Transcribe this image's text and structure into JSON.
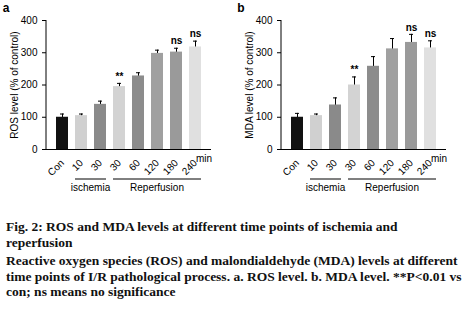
{
  "chart_data": [
    {
      "type": "bar",
      "panel": "a",
      "y_label": "ROS level (% of control)",
      "x_label": "min",
      "categories": [
        "Con",
        "10",
        "30",
        "30",
        "60",
        "120",
        "180",
        "240"
      ],
      "group_of": [
        null,
        "ischemia",
        "ischemia",
        "Reperfusion",
        "Reperfusion",
        "Reperfusion",
        "Reperfusion",
        "Reperfusion"
      ],
      "values": [
        100,
        105,
        140,
        195,
        228,
        298,
        302,
        318
      ],
      "errors": [
        10,
        5,
        10,
        10,
        10,
        10,
        12,
        18
      ],
      "significance": [
        null,
        null,
        null,
        "**",
        null,
        null,
        "ns",
        "ns"
      ],
      "colors": [
        "#111111",
        "#d0d0d0",
        "#8a8a8a",
        "#d3d3d3",
        "#8c8c8c",
        "#a0a0a0",
        "#9a9a9a",
        "#e0e0e0"
      ],
      "ylim": [
        0,
        400
      ],
      "yticks": [
        0,
        100,
        200,
        300,
        400
      ]
    },
    {
      "type": "bar",
      "panel": "b",
      "y_label": "MDA level (% of control)",
      "x_label": "min",
      "categories": [
        "Con",
        "10",
        "30",
        "30",
        "60",
        "120",
        "180",
        "240"
      ],
      "group_of": [
        null,
        "ischemia",
        "ischemia",
        "Reperfusion",
        "Reperfusion",
        "Reperfusion",
        "Reperfusion",
        "Reperfusion"
      ],
      "values": [
        100,
        105,
        138,
        200,
        258,
        312,
        332,
        315
      ],
      "errors": [
        12,
        5,
        22,
        25,
        30,
        32,
        25,
        22
      ],
      "significance": [
        null,
        null,
        null,
        "**",
        null,
        null,
        "ns",
        "ns"
      ],
      "colors": [
        "#111111",
        "#d0d0d0",
        "#8a8a8a",
        "#d3d3d3",
        "#8c8c8c",
        "#a0a0a0",
        "#9a9a9a",
        "#e0e0e0"
      ],
      "ylim": [
        0,
        400
      ],
      "yticks": [
        0,
        100,
        200,
        300,
        400
      ]
    }
  ],
  "caption": {
    "title": "Fig. 2: ROS and MDA levels at different time points of ischemia and reperfusion",
    "text": "Reactive oxygen species (ROS) and malondialdehyde (MDA) levels at different time points of I/R pathological process. a. ROS level. b. MDA level. **P<0.01 vs con; ns means no significance"
  }
}
